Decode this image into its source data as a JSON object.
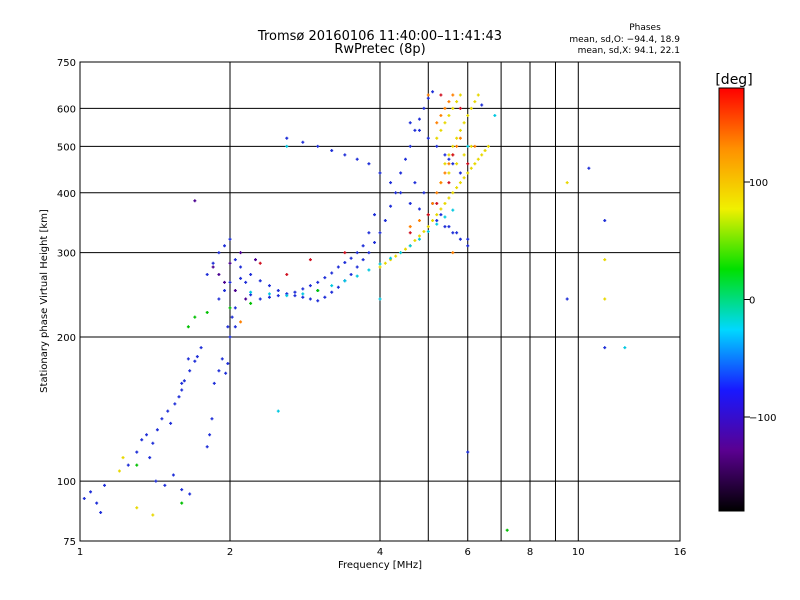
{
  "header": {
    "title_line1": "Tromsø 20160106 11:40:00–11:41:43",
    "title_line2": "RwPretec (8p)"
  },
  "phases_box": {
    "heading": "Phases",
    "line_o": "mean, sd,O: −94.4, 18.9",
    "line_x": "mean, sd,X:  94.1, 22.1"
  },
  "chart_data": {
    "type": "scatter",
    "xlabel": "Frequency [MHz]",
    "ylabel": "Stationary phase Virtual Height [km]",
    "x_scale": "log",
    "y_scale": "log",
    "xlim": [
      1,
      16
    ],
    "ylim": [
      75,
      750
    ],
    "x_ticks": [
      1,
      2,
      4,
      6,
      8,
      10,
      16
    ],
    "x_tick_labels": [
      "1",
      "2",
      "4",
      "6",
      "8",
      "10",
      "16"
    ],
    "x_extra_gridlines": [
      5,
      7,
      9
    ],
    "y_ticks": [
      75,
      100,
      200,
      300,
      400,
      500,
      600,
      750
    ],
    "y_tick_labels": [
      "75",
      "100",
      "200",
      "300",
      "400",
      "500",
      "600",
      "750"
    ],
    "grid": true,
    "colorbar": {
      "label": "[deg]",
      "range": [
        -180,
        180
      ],
      "tick_values": [
        100,
        0,
        -100
      ],
      "tick_labels": [
        "100",
        "0",
        "−100"
      ],
      "stops": [
        "#000000",
        "#5a0090",
        "#1818ff",
        "#00d8ff",
        "#00e000",
        "#f0f000",
        "#ff9000",
        "#ff0000"
      ]
    },
    "series": [
      {
        "color": "#1f2fd8",
        "phase_deg": -100,
        "x": [
          1.02,
          1.05,
          1.08,
          1.12,
          1.1,
          1.25,
          1.3,
          1.33,
          1.36,
          1.4,
          1.43,
          1.46,
          1.5,
          1.52,
          1.55,
          1.58,
          1.6,
          1.62,
          1.66,
          1.7,
          1.72,
          1.75,
          1.38,
          1.42,
          1.48,
          1.54,
          1.6,
          1.66,
          1.8,
          1.82,
          1.84,
          1.86,
          1.9,
          1.93,
          1.96,
          1.98,
          2.0,
          2.05,
          1.8,
          1.85,
          1.9,
          1.95,
          2.0,
          2.05,
          2.1,
          2.15,
          2.2,
          2.3,
          2.4,
          2.5,
          2.6,
          2.7,
          2.8,
          2.9,
          3.0,
          3.1,
          3.2,
          3.3,
          3.4,
          3.5,
          3.6,
          3.7,
          3.8,
          3.9,
          2.1,
          2.2,
          2.3,
          2.4,
          2.5,
          2.6,
          2.7,
          2.8,
          2.9,
          3.0,
          3.1,
          3.2,
          3.3,
          3.4,
          3.5,
          3.6,
          3.7,
          3.8,
          3.9,
          4.0,
          4.1,
          4.2,
          4.3,
          4.4,
          4.5,
          4.6,
          4.7,
          4.8,
          4.9,
          5.0,
          5.1,
          2.6,
          2.8,
          3.0,
          3.2,
          3.4,
          3.6,
          3.8,
          4.0,
          4.2,
          4.4,
          4.6,
          4.8,
          5.0,
          5.2,
          5.4,
          5.6,
          5.8,
          6.0,
          4.6,
          4.8,
          5.0,
          5.2,
          5.4,
          5.6,
          5.8,
          4.7,
          4.9,
          5.1,
          5.3,
          5.5,
          5.7,
          6.0,
          1.9,
          1.95,
          2.0,
          2.05,
          2.02,
          1.98,
          1.6,
          1.65,
          5.5,
          6.4,
          10.5,
          11.3,
          11.3,
          9.5,
          6.0
        ],
        "y": [
          92,
          95,
          90,
          98,
          86,
          108,
          115,
          122,
          125,
          120,
          128,
          135,
          140,
          132,
          145,
          150,
          155,
          162,
          170,
          178,
          182,
          190,
          112,
          100,
          98,
          103,
          96,
          94,
          118,
          125,
          135,
          160,
          170,
          180,
          168,
          176,
          200,
          210,
          270,
          285,
          300,
          310,
          320,
          290,
          265,
          260,
          245,
          240,
          242,
          244,
          246,
          248,
          252,
          256,
          260,
          266,
          272,
          280,
          286,
          292,
          300,
          310,
          330,
          360,
          280,
          270,
          262,
          256,
          250,
          246,
          244,
          242,
          240,
          238,
          242,
          248,
          254,
          262,
          270,
          280,
          290,
          300,
          315,
          330,
          350,
          375,
          400,
          440,
          470,
          500,
          540,
          570,
          600,
          630,
          650,
          520,
          510,
          500,
          490,
          480,
          470,
          460,
          440,
          420,
          400,
          380,
          370,
          360,
          350,
          340,
          330,
          320,
          310,
          560,
          540,
          520,
          500,
          480,
          460,
          440,
          420,
          400,
          380,
          360,
          340,
          330,
          320,
          240,
          250,
          260,
          230,
          220,
          210,
          160,
          180,
          470,
          610,
          450,
          350,
          190,
          240,
          115
        ]
      },
      {
        "color": "#e8d800",
        "phase_deg": 100,
        "x": [
          4.0,
          4.1,
          4.2,
          4.3,
          4.4,
          4.5,
          4.6,
          4.7,
          4.8,
          4.9,
          5.0,
          5.1,
          5.2,
          5.3,
          5.4,
          5.5,
          5.6,
          5.7,
          5.8,
          5.9,
          6.0,
          6.1,
          6.2,
          6.3,
          6.4,
          6.5,
          6.6,
          5.2,
          5.3,
          5.4,
          5.5,
          5.6,
          5.7,
          5.8,
          5.4,
          5.5,
          5.6,
          5.7,
          5.8,
          5.9,
          6.0,
          6.1,
          6.2,
          6.3,
          5.3,
          5.5,
          5.7,
          5.9,
          6.1,
          9.5,
          11.3,
          11.3,
          1.2,
          1.3,
          1.4,
          1.22
        ],
        "y": [
          280,
          285,
          290,
          295,
          300,
          305,
          310,
          318,
          325,
          332,
          340,
          350,
          360,
          370,
          380,
          390,
          400,
          410,
          420,
          430,
          440,
          450,
          460,
          470,
          480,
          490,
          500,
          520,
          540,
          560,
          580,
          600,
          620,
          640,
          460,
          480,
          500,
          520,
          540,
          560,
          580,
          600,
          620,
          640,
          420,
          440,
          460,
          480,
          500,
          420,
          290,
          240,
          105,
          88,
          85,
          112
        ]
      },
      {
        "color": "#ff8000",
        "phase_deg": 140,
        "x": [
          4.6,
          4.8,
          5.0,
          5.1,
          5.2,
          5.3,
          5.4,
          5.5,
          5.6,
          5.7,
          5.8,
          5.2,
          5.3,
          5.4,
          5.5,
          5.6,
          5.6,
          6.2,
          2.1,
          5.0
        ],
        "y": [
          340,
          350,
          360,
          380,
          400,
          420,
          440,
          460,
          480,
          500,
          520,
          560,
          580,
          600,
          620,
          640,
          300,
          500,
          215,
          640
        ]
      },
      {
        "color": "#d01020",
        "phase_deg": 175,
        "x": [
          4.6,
          5.0,
          5.2,
          5.5,
          5.6,
          5.8,
          6.0,
          2.3,
          2.9,
          3.4,
          2.6,
          5.3
        ],
        "y": [
          330,
          360,
          380,
          420,
          480,
          600,
          460,
          285,
          290,
          300,
          270,
          640
        ]
      },
      {
        "color": "#00c8e0",
        "phase_deg": -30,
        "x": [
          2.2,
          2.4,
          2.6,
          2.8,
          3.0,
          3.2,
          3.4,
          3.6,
          3.8,
          4.0,
          4.2,
          4.4,
          4.6,
          4.8,
          5.0,
          5.2,
          5.4,
          5.6,
          6.0,
          6.8,
          2.5,
          2.6,
          4.0,
          12.4
        ],
        "y": [
          248,
          246,
          244,
          246,
          250,
          256,
          262,
          268,
          276,
          284,
          292,
          300,
          310,
          320,
          332,
          344,
          356,
          368,
          500,
          580,
          140,
          500,
          240,
          190
        ]
      },
      {
        "color": "#00c000",
        "phase_deg": 0,
        "x": [
          1.6,
          1.65,
          1.7,
          1.8,
          2.0,
          2.2,
          3.0,
          7.2,
          1.3
        ],
        "y": [
          90,
          210,
          220,
          225,
          230,
          235,
          250,
          79,
          108
        ]
      },
      {
        "color": "#4a0090",
        "phase_deg": -150,
        "x": [
          1.9,
          2.0,
          2.1,
          1.95,
          2.05,
          2.15,
          1.85,
          2.25,
          1.7
        ],
        "y": [
          270,
          285,
          300,
          260,
          250,
          240,
          280,
          290,
          385
        ]
      }
    ]
  }
}
